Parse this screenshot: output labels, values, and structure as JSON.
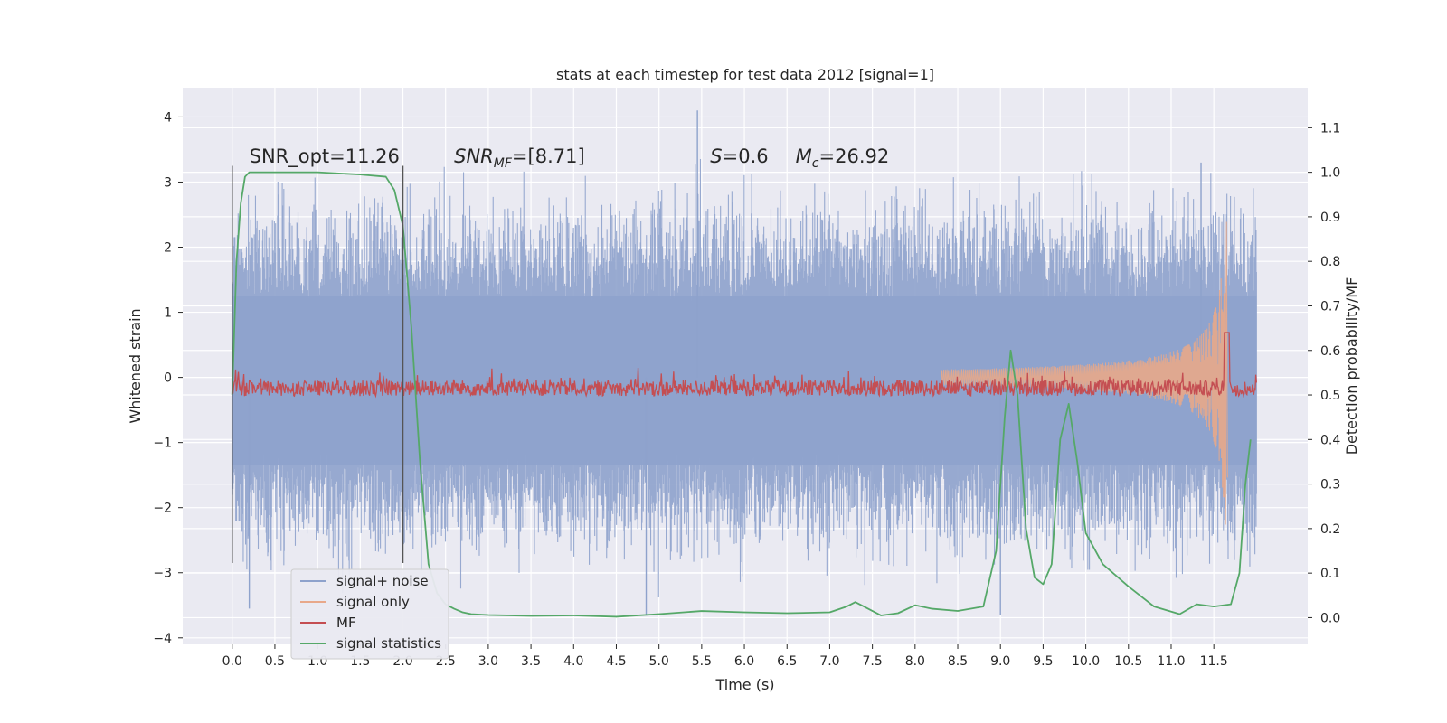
{
  "chart_data": {
    "type": "line",
    "title": "stats at each timestep for test data 2012 [signal=1]",
    "xlabel": "Time (s)",
    "ylabel": "Whitened strain",
    "y2label": "Detection probability/MF",
    "xlim": [
      -0.58,
      12.6
    ],
    "ylim": [
      -4.1,
      4.45
    ],
    "y2lim": [
      -0.06,
      1.19
    ],
    "grid": true,
    "legend_position": "lower-left",
    "x_ticks": [
      "0.0",
      "0.5",
      "1.0",
      "1.5",
      "2.0",
      "2.5",
      "3.0",
      "3.5",
      "4.0",
      "4.5",
      "5.0",
      "5.5",
      "6.0",
      "6.5",
      "7.0",
      "7.5",
      "8.0",
      "8.5",
      "9.0",
      "9.5",
      "10.0",
      "10.5",
      "11.0",
      "11.5"
    ],
    "y_ticks": [
      "4",
      "3",
      "2",
      "1",
      "0",
      "−1",
      "−2",
      "−3",
      "−4"
    ],
    "y2_ticks": [
      "1.1",
      "1.0",
      "0.9",
      "0.8",
      "0.7",
      "0.6",
      "0.5",
      "0.4",
      "0.3",
      "0.2",
      "0.1",
      "0.0"
    ],
    "annotations": [
      {
        "text": "SNR_opt=11.26",
        "x": 0.2,
        "y": 3.3
      },
      {
        "parts": [
          {
            "t": "SNR"
          },
          {
            "t": "MF",
            "sub": true
          },
          {
            "t": "=[8.71]",
            "plain": true
          }
        ],
        "x": 2.6,
        "y": 3.3
      },
      {
        "parts": [
          {
            "t": "S"
          },
          {
            "t": "=0.6",
            "plain": true
          }
        ],
        "x": 5.6,
        "y": 3.3
      },
      {
        "parts": [
          {
            "t": "M"
          },
          {
            "t": "c",
            "sub": true
          },
          {
            "t": "=26.92",
            "plain": true
          }
        ],
        "x": 6.6,
        "y": 3.3
      }
    ],
    "vertical_markers": [
      {
        "x": 0.0,
        "y": [
          -2.85,
          3.25
        ]
      },
      {
        "x": 2.0,
        "y": [
          -2.85,
          3.25
        ]
      }
    ],
    "series": [
      {
        "name": "signal+ noise",
        "color": "#8ea2cc",
        "axis": "left",
        "x_range": [
          0,
          12
        ],
        "typical_amplitude": 1.15,
        "peak_values": [
          {
            "x": 5.45,
            "y": 4.1
          },
          {
            "x": 0.2,
            "y": -3.55
          },
          {
            "x": 9.0,
            "y": -3.65
          },
          {
            "x": 4.85,
            "y": -3.65
          },
          {
            "x": 11.35,
            "y": 3.3
          }
        ]
      },
      {
        "name": "signal only",
        "color": "#e8a88a",
        "axis": "left",
        "description_points": [
          {
            "x": 8.5,
            "y": 0.05
          },
          {
            "x": 11.0,
            "y": 0.45
          },
          {
            "x": 11.6,
            "y": 2.4
          },
          {
            "x": 11.65,
            "y": -2.1
          }
        ]
      },
      {
        "name": "MF",
        "color": "#c44e52",
        "axis": "right",
        "baseline": 0.5,
        "band": [
          0.48,
          0.54
        ],
        "spike": {
          "x": 11.65,
          "y": 0.64
        }
      },
      {
        "name": "signal statistics",
        "color": "#55a868",
        "axis": "right",
        "x": [
          0.0,
          0.05,
          0.1,
          0.15,
          0.2,
          0.4,
          0.6,
          1.0,
          1.5,
          1.8,
          1.9,
          2.0,
          2.1,
          2.2,
          2.3,
          2.4,
          2.5,
          2.6,
          2.7,
          2.8,
          3.0,
          3.5,
          4.0,
          4.5,
          5.0,
          5.5,
          6.0,
          6.5,
          7.0,
          7.2,
          7.3,
          7.4,
          7.6,
          7.8,
          8.0,
          8.2,
          8.5,
          8.8,
          8.95,
          9.05,
          9.12,
          9.2,
          9.3,
          9.4,
          9.5,
          9.6,
          9.7,
          9.8,
          9.9,
          10.0,
          10.2,
          10.5,
          10.8,
          11.1,
          11.3,
          11.5,
          11.7,
          11.8,
          11.87,
          11.93
        ],
        "y": [
          0.5,
          0.8,
          0.93,
          0.99,
          1.0,
          1.0,
          1.0,
          1.0,
          0.995,
          0.99,
          0.96,
          0.88,
          0.65,
          0.35,
          0.12,
          0.055,
          0.03,
          0.02,
          0.012,
          0.008,
          0.006,
          0.004,
          0.005,
          0.002,
          0.008,
          0.015,
          0.012,
          0.01,
          0.012,
          0.025,
          0.035,
          0.025,
          0.005,
          0.01,
          0.028,
          0.02,
          0.015,
          0.025,
          0.15,
          0.45,
          0.6,
          0.5,
          0.2,
          0.09,
          0.075,
          0.12,
          0.4,
          0.48,
          0.35,
          0.19,
          0.12,
          0.07,
          0.025,
          0.008,
          0.03,
          0.025,
          0.03,
          0.1,
          0.3,
          0.4
        ]
      }
    ]
  }
}
